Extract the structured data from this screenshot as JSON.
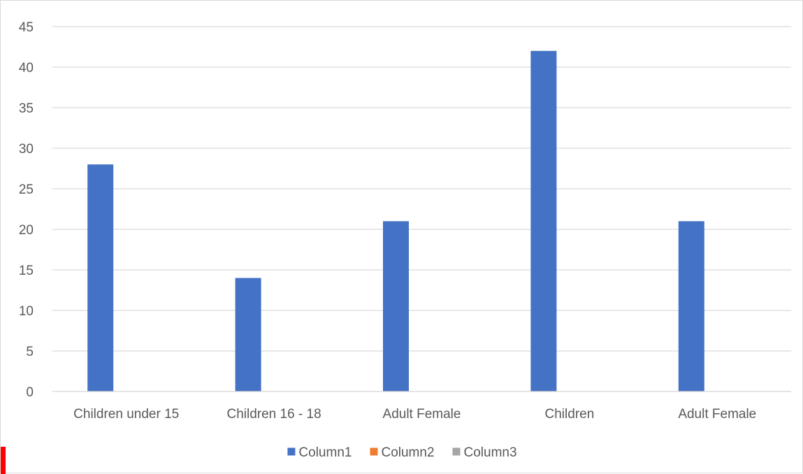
{
  "chart_data": {
    "type": "bar",
    "categories": [
      "Children under 15",
      "Children 16 - 18",
      "Adult Female",
      "Children",
      "Adult Female"
    ],
    "series": [
      {
        "name": "Column1",
        "values": [
          28,
          14,
          21,
          42,
          21
        ],
        "color": "#4472c4"
      },
      {
        "name": "Column2",
        "values": [
          null,
          null,
          null,
          null,
          null
        ],
        "color": "#ed7d31"
      },
      {
        "name": "Column3",
        "values": [
          null,
          null,
          null,
          null,
          null
        ],
        "color": "#a5a5a5"
      }
    ],
    "title": "",
    "xlabel": "",
    "ylabel": "",
    "ylim": [
      0,
      45
    ],
    "yticks": [
      0,
      5,
      10,
      15,
      20,
      25,
      30,
      35,
      40,
      45
    ],
    "grid": true,
    "legend": "bottom",
    "gridline_color": "#d9d9d9",
    "axis_text_color": "#595959"
  }
}
